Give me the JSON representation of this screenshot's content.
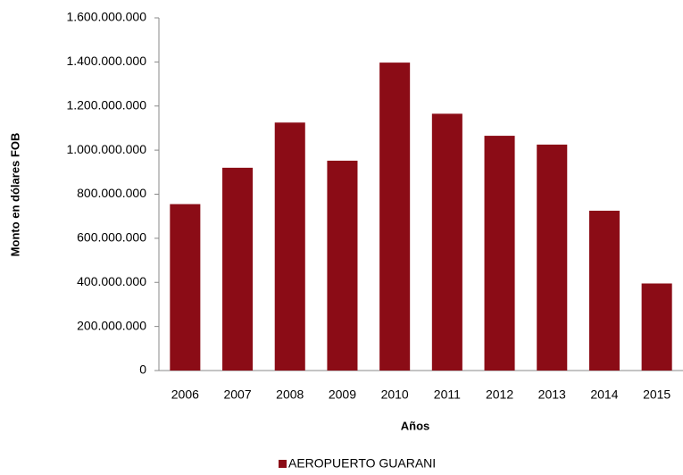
{
  "chart_data": {
    "type": "bar",
    "categories": [
      "2006",
      "2007",
      "2008",
      "2009",
      "2010",
      "2011",
      "2012",
      "2013",
      "2014",
      "2015"
    ],
    "series": [
      {
        "name": "AEROPUERTO GUARANI",
        "color": "#8b0c16",
        "values": [
          755000000,
          920000000,
          1125000000,
          952000000,
          1397000000,
          1165000000,
          1065000000,
          1025000000,
          725000000,
          395000000
        ]
      }
    ],
    "ylim": [
      0,
      1600000000
    ],
    "yticks": [
      0,
      {
        "value": 200000000,
        "label": "200.000.000"
      },
      {
        "value": 400000000,
        "label": "400.000.000"
      },
      {
        "value": 600000000,
        "label": "600.000.000"
      },
      {
        "value": 800000000,
        "label": "800.000.000"
      },
      {
        "value": 1000000000,
        "label": "1.000.000.000"
      },
      {
        "value": 1200000000,
        "label": "1.200.000.000"
      },
      {
        "value": 1400000000,
        "label": "1.400.000.000"
      },
      {
        "value": 1600000000,
        "label": "1.600.000.000"
      }
    ],
    "x_label": "Años",
    "y_label": "Monto en dólares FOB",
    "grid": false,
    "legend": "bottom"
  }
}
